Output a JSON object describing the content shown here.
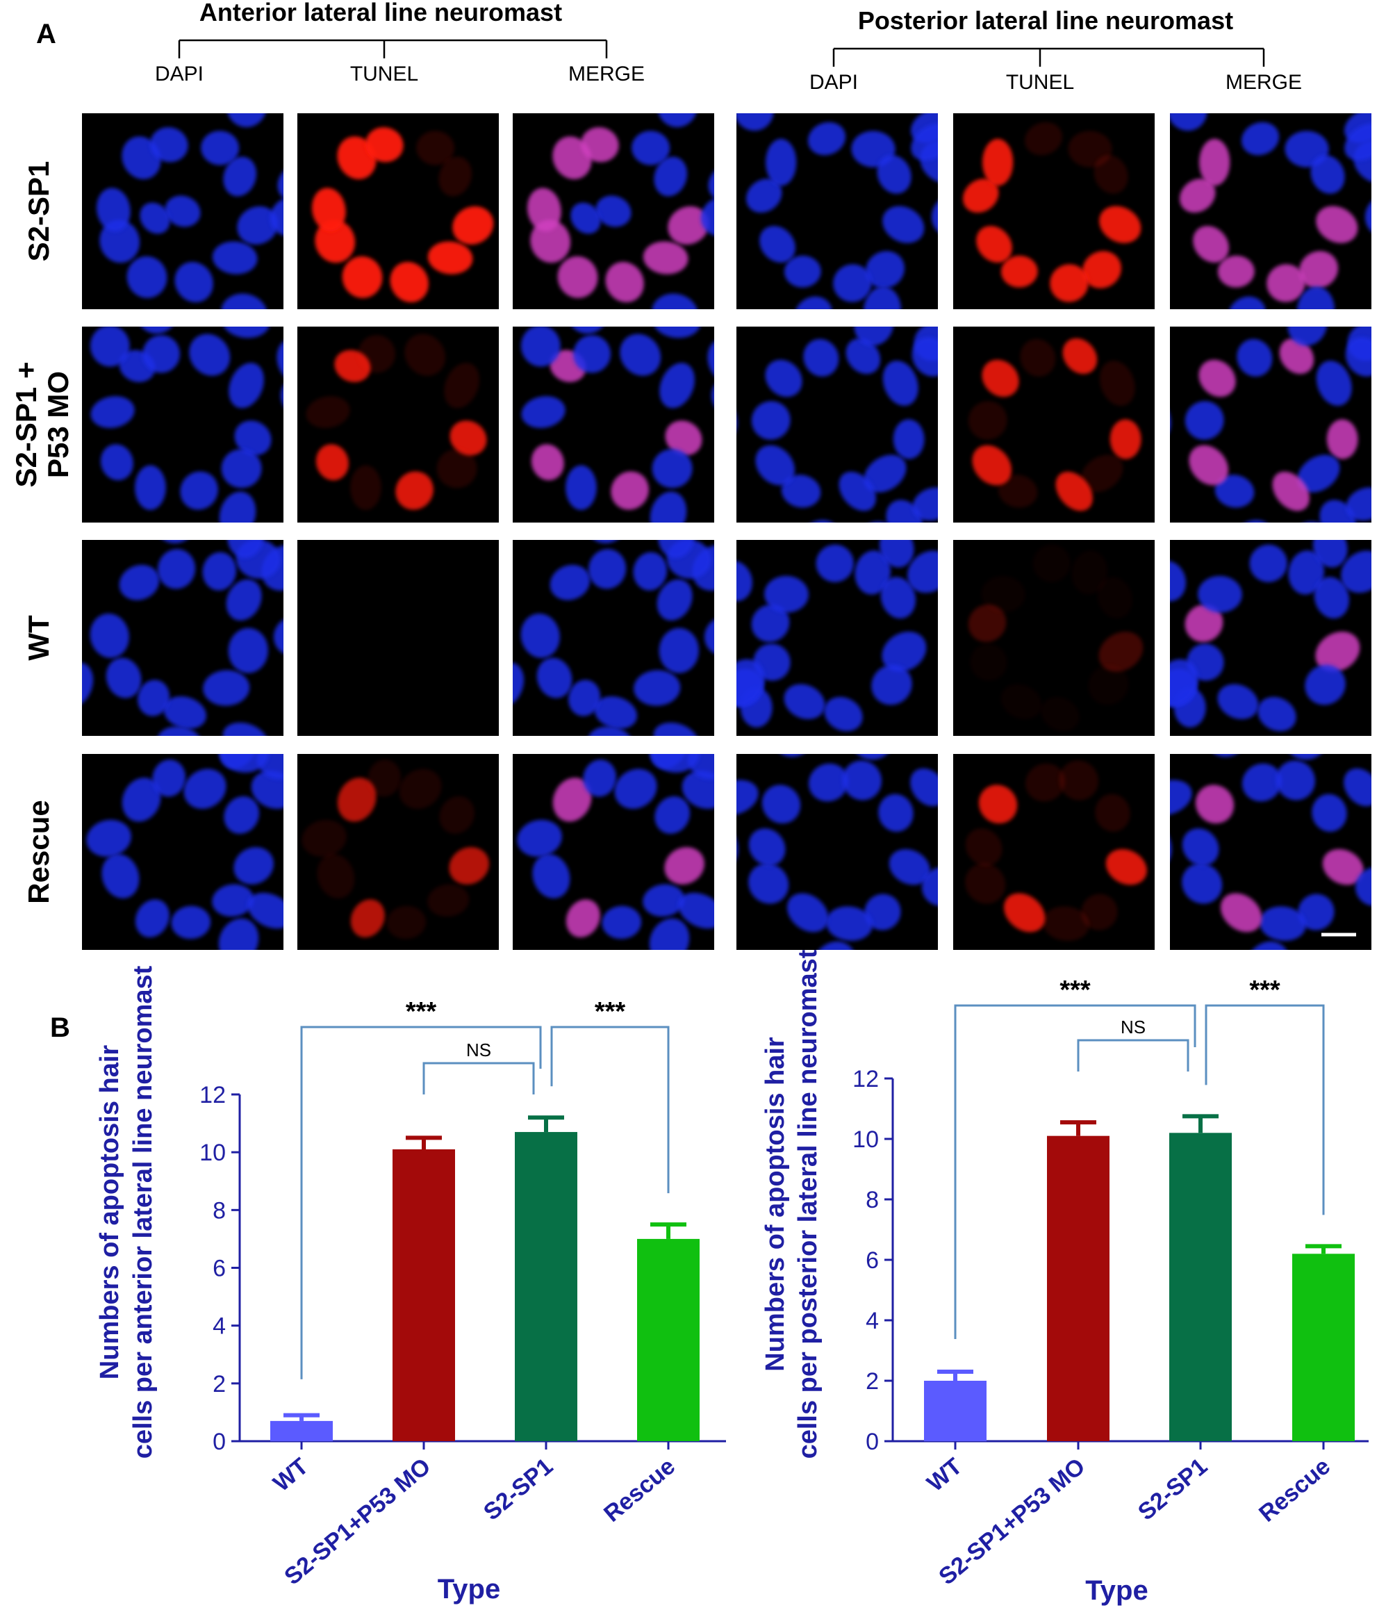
{
  "panel_a": {
    "letter": "A",
    "groups": [
      {
        "title": "Anterior lateral line neuromast",
        "channels": [
          "DAPI",
          "TUNEL",
          "MERGE"
        ]
      },
      {
        "title": "Posterior lateral line neuromast",
        "channels": [
          "DAPI",
          "TUNEL",
          "MERGE"
        ]
      }
    ],
    "rows": [
      {
        "label_lines": [
          "S2-SP1"
        ],
        "tunel_intensity": [
          0.95,
          0.9
        ],
        "tunel_cells": [
          8,
          7
        ]
      },
      {
        "label_lines": [
          "S2-SP1 +",
          "P53 MO"
        ],
        "tunel_intensity": [
          0.85,
          0.85
        ],
        "tunel_cells": [
          4,
          5
        ]
      },
      {
        "label_lines": [
          "WT"
        ],
        "tunel_intensity": [
          0.0,
          0.25
        ],
        "tunel_cells": [
          0,
          2
        ]
      },
      {
        "label_lines": [
          "Rescue"
        ],
        "tunel_intensity": [
          0.7,
          0.85
        ],
        "tunel_cells": [
          3,
          3
        ]
      }
    ],
    "colors": {
      "dapi": "#1a2ee8",
      "tunel": "#ff1a10",
      "merge": "#d040c0",
      "background": "#000000"
    }
  },
  "panel_b": {
    "letter": "B"
  },
  "chart_data": [
    {
      "type": "bar",
      "categories": [
        "WT",
        "S2-SP1+P53 MO",
        "S2-SP1",
        "Rescue"
      ],
      "values": [
        0.7,
        10.1,
        10.7,
        7.0
      ],
      "errors": [
        0.2,
        0.4,
        0.5,
        0.5
      ],
      "colors": [
        "#5b5bff",
        "#a30a0a",
        "#077046",
        "#10c010"
      ],
      "xlabel": "Type",
      "ylabel_lines": [
        "Numbers of apoptosis hair",
        "cells per anterior lateral line neuromast"
      ],
      "ylim": [
        0,
        12
      ],
      "yticks": [
        "0",
        "2",
        "4",
        "6",
        "8",
        "10",
        "12"
      ],
      "grid": false,
      "significance": [
        {
          "from": "WT",
          "to": "S2-SP1",
          "label": "***"
        },
        {
          "from": "S2-SP1+P53 MO",
          "to": "S2-SP1",
          "label": "NS"
        },
        {
          "from": "S2-SP1",
          "to": "Rescue",
          "label": "***"
        }
      ]
    },
    {
      "type": "bar",
      "categories": [
        "WT",
        "S2-SP1+P53 MO",
        "S2-SP1",
        "Rescue"
      ],
      "values": [
        2.0,
        10.1,
        10.2,
        6.2
      ],
      "errors": [
        0.3,
        0.45,
        0.55,
        0.25
      ],
      "colors": [
        "#5b5bff",
        "#a30a0a",
        "#077046",
        "#10c010"
      ],
      "xlabel": "Type",
      "ylabel_lines": [
        "Numbers of apoptosis hair",
        "cells per posterior lateral line neuromast"
      ],
      "ylim": [
        0,
        12
      ],
      "yticks": [
        "0",
        "2",
        "4",
        "6",
        "8",
        "10",
        "12"
      ],
      "grid": false,
      "significance": [
        {
          "from": "WT",
          "to": "S2-SP1",
          "label": "***"
        },
        {
          "from": "S2-SP1+P53 MO",
          "to": "S2-SP1",
          "label": "NS"
        },
        {
          "from": "S2-SP1",
          "to": "Rescue",
          "label": "***"
        }
      ]
    }
  ]
}
